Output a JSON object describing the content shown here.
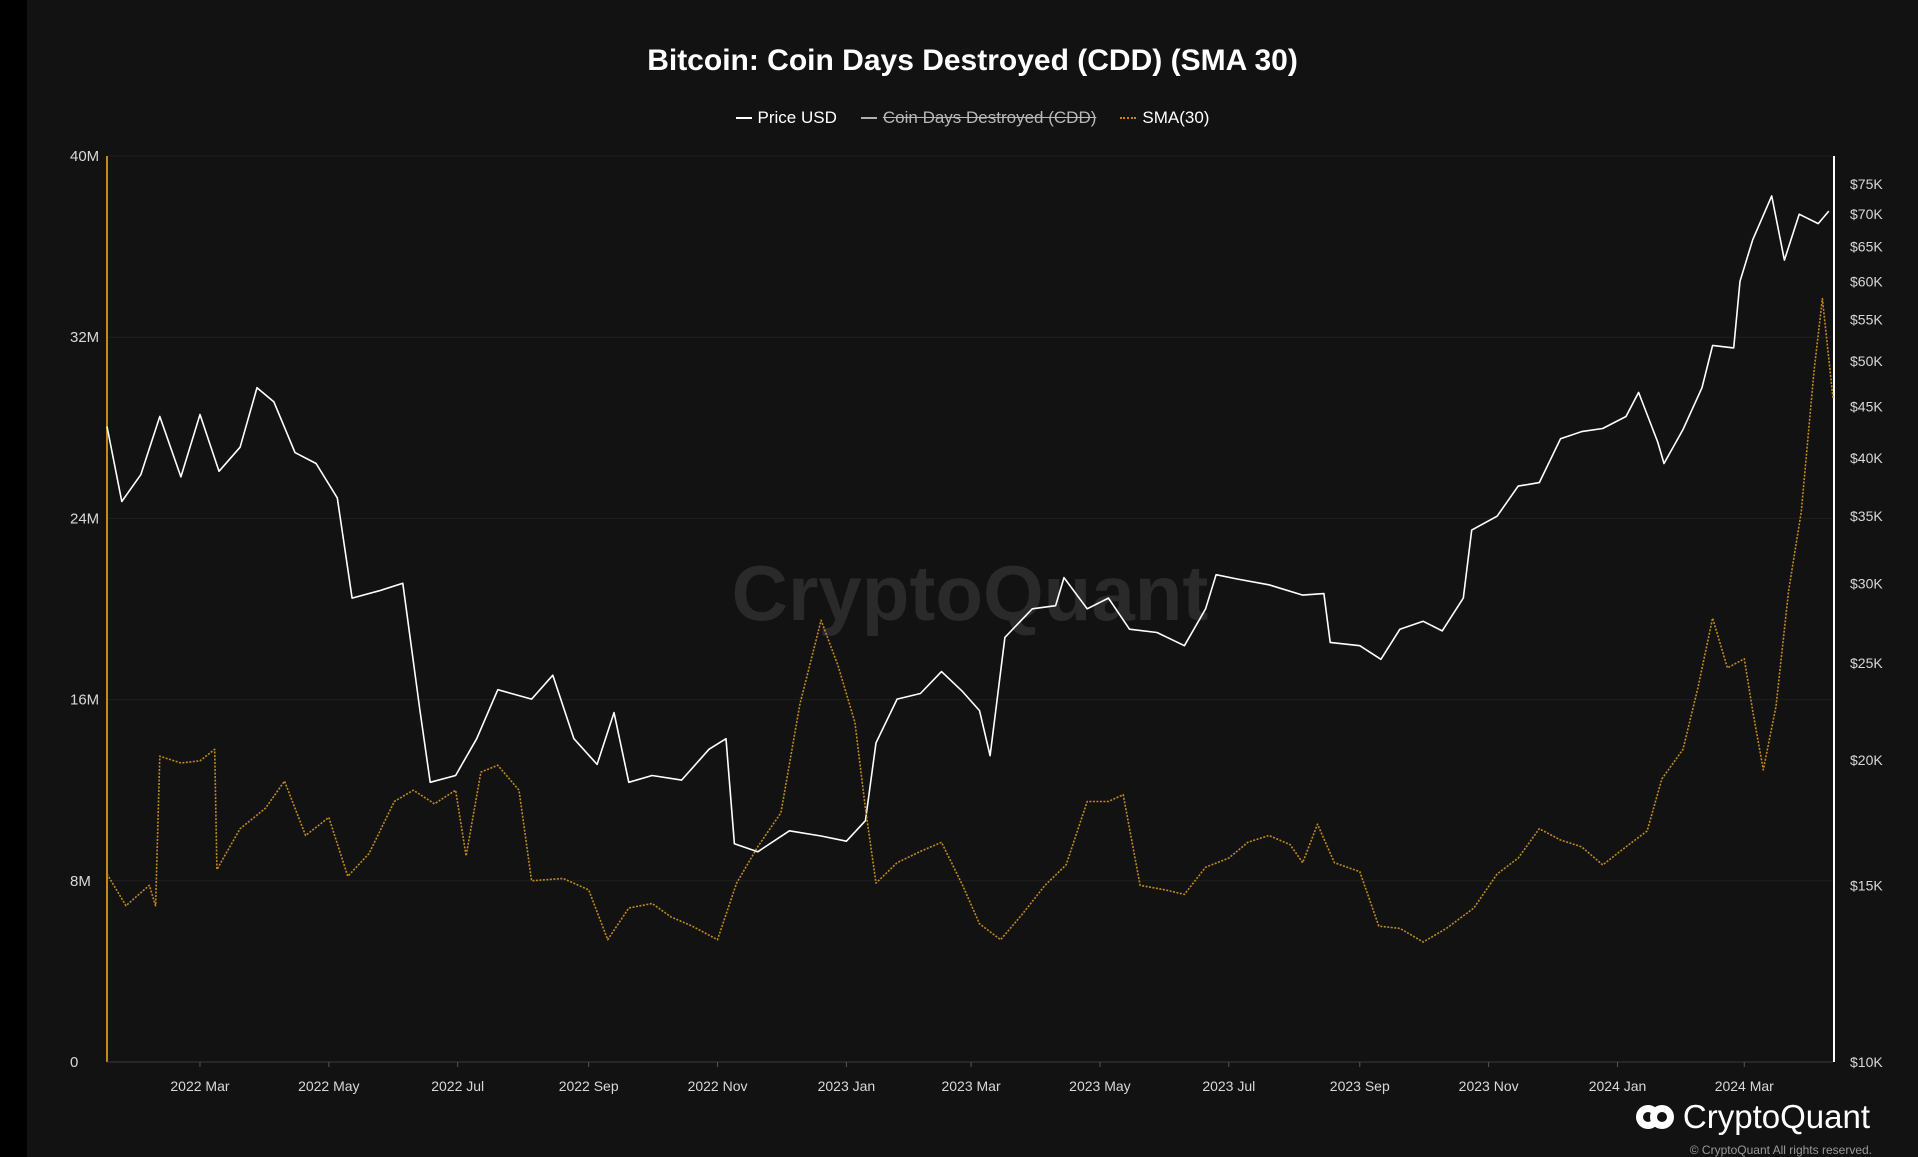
{
  "chart_data": {
    "type": "line",
    "title": "Bitcoin: Coin Days Destroyed (CDD) (SMA 30)",
    "legend": [
      {
        "name": "Price USD",
        "visible": true,
        "style": "solid",
        "color": "#ffffff"
      },
      {
        "name": "Coin Days Destroyed (CDD)",
        "visible": false,
        "style": "solid",
        "color": "#b0b0b0"
      },
      {
        "name": "SMA(30)",
        "visible": true,
        "style": "dotted",
        "color": "#c08a1e"
      }
    ],
    "x_ticks": [
      "2022 Mar",
      "2022 May",
      "2022 Jul",
      "2022 Sep",
      "2022 Nov",
      "2023 Jan",
      "2023 Mar",
      "2023 May",
      "2023 Jul",
      "2023 Sep",
      "2023 Nov",
      "2024 Jan",
      "2024 Mar"
    ],
    "x_range": [
      "2022-01-16",
      "2024-04-12"
    ],
    "y_left": {
      "ticks": [
        "0",
        "8M",
        "16M",
        "24M",
        "32M",
        "40M"
      ],
      "range": [
        0,
        40000000
      ]
    },
    "y_right": {
      "ticks": [
        "$10K",
        "$15K",
        "$20K",
        "$25K",
        "$30K",
        "$35K",
        "$40K",
        "$45K",
        "$50K",
        "$55K",
        "$60K",
        "$65K",
        "$70K",
        "$75K"
      ],
      "scale": "log",
      "range": [
        10000,
        80000
      ]
    },
    "series": [
      {
        "name": "Price USD",
        "axis": "right",
        "points": [
          [
            "2022-01-16",
            43000
          ],
          [
            "2022-01-23",
            36200
          ],
          [
            "2022-02-01",
            38500
          ],
          [
            "2022-02-10",
            44000
          ],
          [
            "2022-02-20",
            38300
          ],
          [
            "2022-03-01",
            44200
          ],
          [
            "2022-03-10",
            38800
          ],
          [
            "2022-03-20",
            41000
          ],
          [
            "2022-03-28",
            47000
          ],
          [
            "2022-04-05",
            45500
          ],
          [
            "2022-04-15",
            40500
          ],
          [
            "2022-04-25",
            39500
          ],
          [
            "2022-05-05",
            36500
          ],
          [
            "2022-05-12",
            29000
          ],
          [
            "2022-05-25",
            29500
          ],
          [
            "2022-06-05",
            30000
          ],
          [
            "2022-06-13",
            22500
          ],
          [
            "2022-06-18",
            19000
          ],
          [
            "2022-06-30",
            19300
          ],
          [
            "2022-07-10",
            21000
          ],
          [
            "2022-07-20",
            23500
          ],
          [
            "2022-08-05",
            23000
          ],
          [
            "2022-08-15",
            24300
          ],
          [
            "2022-08-25",
            21000
          ],
          [
            "2022-09-05",
            19800
          ],
          [
            "2022-09-13",
            22300
          ],
          [
            "2022-09-20",
            19000
          ],
          [
            "2022-10-01",
            19300
          ],
          [
            "2022-10-15",
            19100
          ],
          [
            "2022-10-28",
            20500
          ],
          [
            "2022-11-05",
            21000
          ],
          [
            "2022-11-09",
            16500
          ],
          [
            "2022-11-20",
            16200
          ],
          [
            "2022-12-05",
            17000
          ],
          [
            "2022-12-20",
            16800
          ],
          [
            "2023-01-01",
            16600
          ],
          [
            "2023-01-10",
            17400
          ],
          [
            "2023-01-15",
            20800
          ],
          [
            "2023-01-25",
            23000
          ],
          [
            "2023-02-05",
            23300
          ],
          [
            "2023-02-15",
            24500
          ],
          [
            "2023-02-25",
            23400
          ],
          [
            "2023-03-05",
            22400
          ],
          [
            "2023-03-10",
            20200
          ],
          [
            "2023-03-17",
            26500
          ],
          [
            "2023-03-30",
            28300
          ],
          [
            "2023-04-10",
            28500
          ],
          [
            "2023-04-14",
            30400
          ],
          [
            "2023-04-25",
            28300
          ],
          [
            "2023-05-05",
            29000
          ],
          [
            "2023-05-15",
            27000
          ],
          [
            "2023-05-28",
            26800
          ],
          [
            "2023-06-10",
            26000
          ],
          [
            "2023-06-20",
            28300
          ],
          [
            "2023-06-25",
            30600
          ],
          [
            "2023-07-05",
            30300
          ],
          [
            "2023-07-20",
            29900
          ],
          [
            "2023-08-05",
            29200
          ],
          [
            "2023-08-15",
            29300
          ],
          [
            "2023-08-18",
            26200
          ],
          [
            "2023-09-01",
            26000
          ],
          [
            "2023-09-11",
            25200
          ],
          [
            "2023-09-20",
            27000
          ],
          [
            "2023-10-01",
            27500
          ],
          [
            "2023-10-10",
            26900
          ],
          [
            "2023-10-20",
            29000
          ],
          [
            "2023-10-24",
            33900
          ],
          [
            "2023-11-05",
            35000
          ],
          [
            "2023-11-15",
            37500
          ],
          [
            "2023-11-25",
            37800
          ],
          [
            "2023-12-05",
            41800
          ],
          [
            "2023-12-15",
            42500
          ],
          [
            "2023-12-25",
            42800
          ],
          [
            "2024-01-05",
            44000
          ],
          [
            "2024-01-11",
            46500
          ],
          [
            "2024-01-20",
            41500
          ],
          [
            "2024-01-23",
            39500
          ],
          [
            "2024-02-01",
            42700
          ],
          [
            "2024-02-10",
            47000
          ],
          [
            "2024-02-15",
            51800
          ],
          [
            "2024-02-25",
            51500
          ],
          [
            "2024-02-28",
            60000
          ],
          [
            "2024-03-05",
            66000
          ],
          [
            "2024-03-14",
            73000
          ],
          [
            "2024-03-20",
            63000
          ],
          [
            "2024-03-27",
            70000
          ],
          [
            "2024-04-05",
            68500
          ],
          [
            "2024-04-10",
            70500
          ]
        ]
      },
      {
        "name": "SMA(30)",
        "axis": "left",
        "points": [
          [
            "2022-01-16",
            8300000
          ],
          [
            "2022-01-25",
            6900000
          ],
          [
            "2022-02-05",
            7800000
          ],
          [
            "2022-02-08",
            6900000
          ],
          [
            "2022-02-10",
            13500000
          ],
          [
            "2022-02-20",
            13200000
          ],
          [
            "2022-03-01",
            13300000
          ],
          [
            "2022-03-08",
            13800000
          ],
          [
            "2022-03-09",
            8500000
          ],
          [
            "2022-03-20",
            10300000
          ],
          [
            "2022-04-01",
            11200000
          ],
          [
            "2022-04-10",
            12400000
          ],
          [
            "2022-04-20",
            10000000
          ],
          [
            "2022-05-01",
            10800000
          ],
          [
            "2022-05-10",
            8200000
          ],
          [
            "2022-05-20",
            9200000
          ],
          [
            "2022-06-01",
            11500000
          ],
          [
            "2022-06-10",
            12000000
          ],
          [
            "2022-06-20",
            11400000
          ],
          [
            "2022-06-30",
            12000000
          ],
          [
            "2022-07-05",
            9100000
          ],
          [
            "2022-07-12",
            12800000
          ],
          [
            "2022-07-20",
            13100000
          ],
          [
            "2022-07-30",
            12000000
          ],
          [
            "2022-08-05",
            8000000
          ],
          [
            "2022-08-20",
            8100000
          ],
          [
            "2022-09-01",
            7600000
          ],
          [
            "2022-09-10",
            5400000
          ],
          [
            "2022-09-20",
            6800000
          ],
          [
            "2022-10-01",
            7000000
          ],
          [
            "2022-10-10",
            6400000
          ],
          [
            "2022-10-20",
            6000000
          ],
          [
            "2022-11-01",
            5400000
          ],
          [
            "2022-11-10",
            7900000
          ],
          [
            "2022-11-20",
            9500000
          ],
          [
            "2022-12-01",
            11000000
          ],
          [
            "2022-12-10",
            15800000
          ],
          [
            "2022-12-20",
            19500000
          ],
          [
            "2022-12-28",
            17500000
          ],
          [
            "2023-01-05",
            15000000
          ],
          [
            "2023-01-10",
            11200000
          ],
          [
            "2023-01-15",
            7900000
          ],
          [
            "2023-01-25",
            8800000
          ],
          [
            "2023-02-05",
            9300000
          ],
          [
            "2023-02-15",
            9700000
          ],
          [
            "2023-02-25",
            7800000
          ],
          [
            "2023-03-05",
            6100000
          ],
          [
            "2023-03-15",
            5400000
          ],
          [
            "2023-03-25",
            6500000
          ],
          [
            "2023-04-05",
            7800000
          ],
          [
            "2023-04-15",
            8700000
          ],
          [
            "2023-04-25",
            11500000
          ],
          [
            "2023-05-05",
            11500000
          ],
          [
            "2023-05-12",
            11800000
          ],
          [
            "2023-05-20",
            7800000
          ],
          [
            "2023-06-01",
            7600000
          ],
          [
            "2023-06-10",
            7400000
          ],
          [
            "2023-06-20",
            8600000
          ],
          [
            "2023-07-01",
            9000000
          ],
          [
            "2023-07-10",
            9700000
          ],
          [
            "2023-07-20",
            10000000
          ],
          [
            "2023-07-30",
            9600000
          ],
          [
            "2023-08-05",
            8800000
          ],
          [
            "2023-08-12",
            10500000
          ],
          [
            "2023-08-20",
            8800000
          ],
          [
            "2023-09-01",
            8400000
          ],
          [
            "2023-09-10",
            6000000
          ],
          [
            "2023-09-20",
            5900000
          ],
          [
            "2023-10-01",
            5300000
          ],
          [
            "2023-10-12",
            5900000
          ],
          [
            "2023-10-25",
            6800000
          ],
          [
            "2023-11-05",
            8300000
          ],
          [
            "2023-11-15",
            9000000
          ],
          [
            "2023-11-25",
            10300000
          ],
          [
            "2023-12-05",
            9800000
          ],
          [
            "2023-12-15",
            9500000
          ],
          [
            "2023-12-25",
            8700000
          ],
          [
            "2024-01-05",
            9500000
          ],
          [
            "2024-01-15",
            10200000
          ],
          [
            "2024-01-22",
            12500000
          ],
          [
            "2024-02-01",
            13800000
          ],
          [
            "2024-02-08",
            16500000
          ],
          [
            "2024-02-15",
            19600000
          ],
          [
            "2024-02-22",
            17400000
          ],
          [
            "2024-03-01",
            17800000
          ],
          [
            "2024-03-05",
            15500000
          ],
          [
            "2024-03-10",
            12900000
          ],
          [
            "2024-03-16",
            15700000
          ],
          [
            "2024-03-22",
            20800000
          ],
          [
            "2024-03-28",
            24300000
          ],
          [
            "2024-04-03",
            30500000
          ],
          [
            "2024-04-07",
            33700000
          ],
          [
            "2024-04-12",
            29300000
          ]
        ]
      }
    ],
    "grid": true,
    "watermark": "CryptoQuant"
  },
  "brand": {
    "logo_text": "CryptoQuant",
    "copyright": "© CryptoQuant All rights reserved."
  }
}
